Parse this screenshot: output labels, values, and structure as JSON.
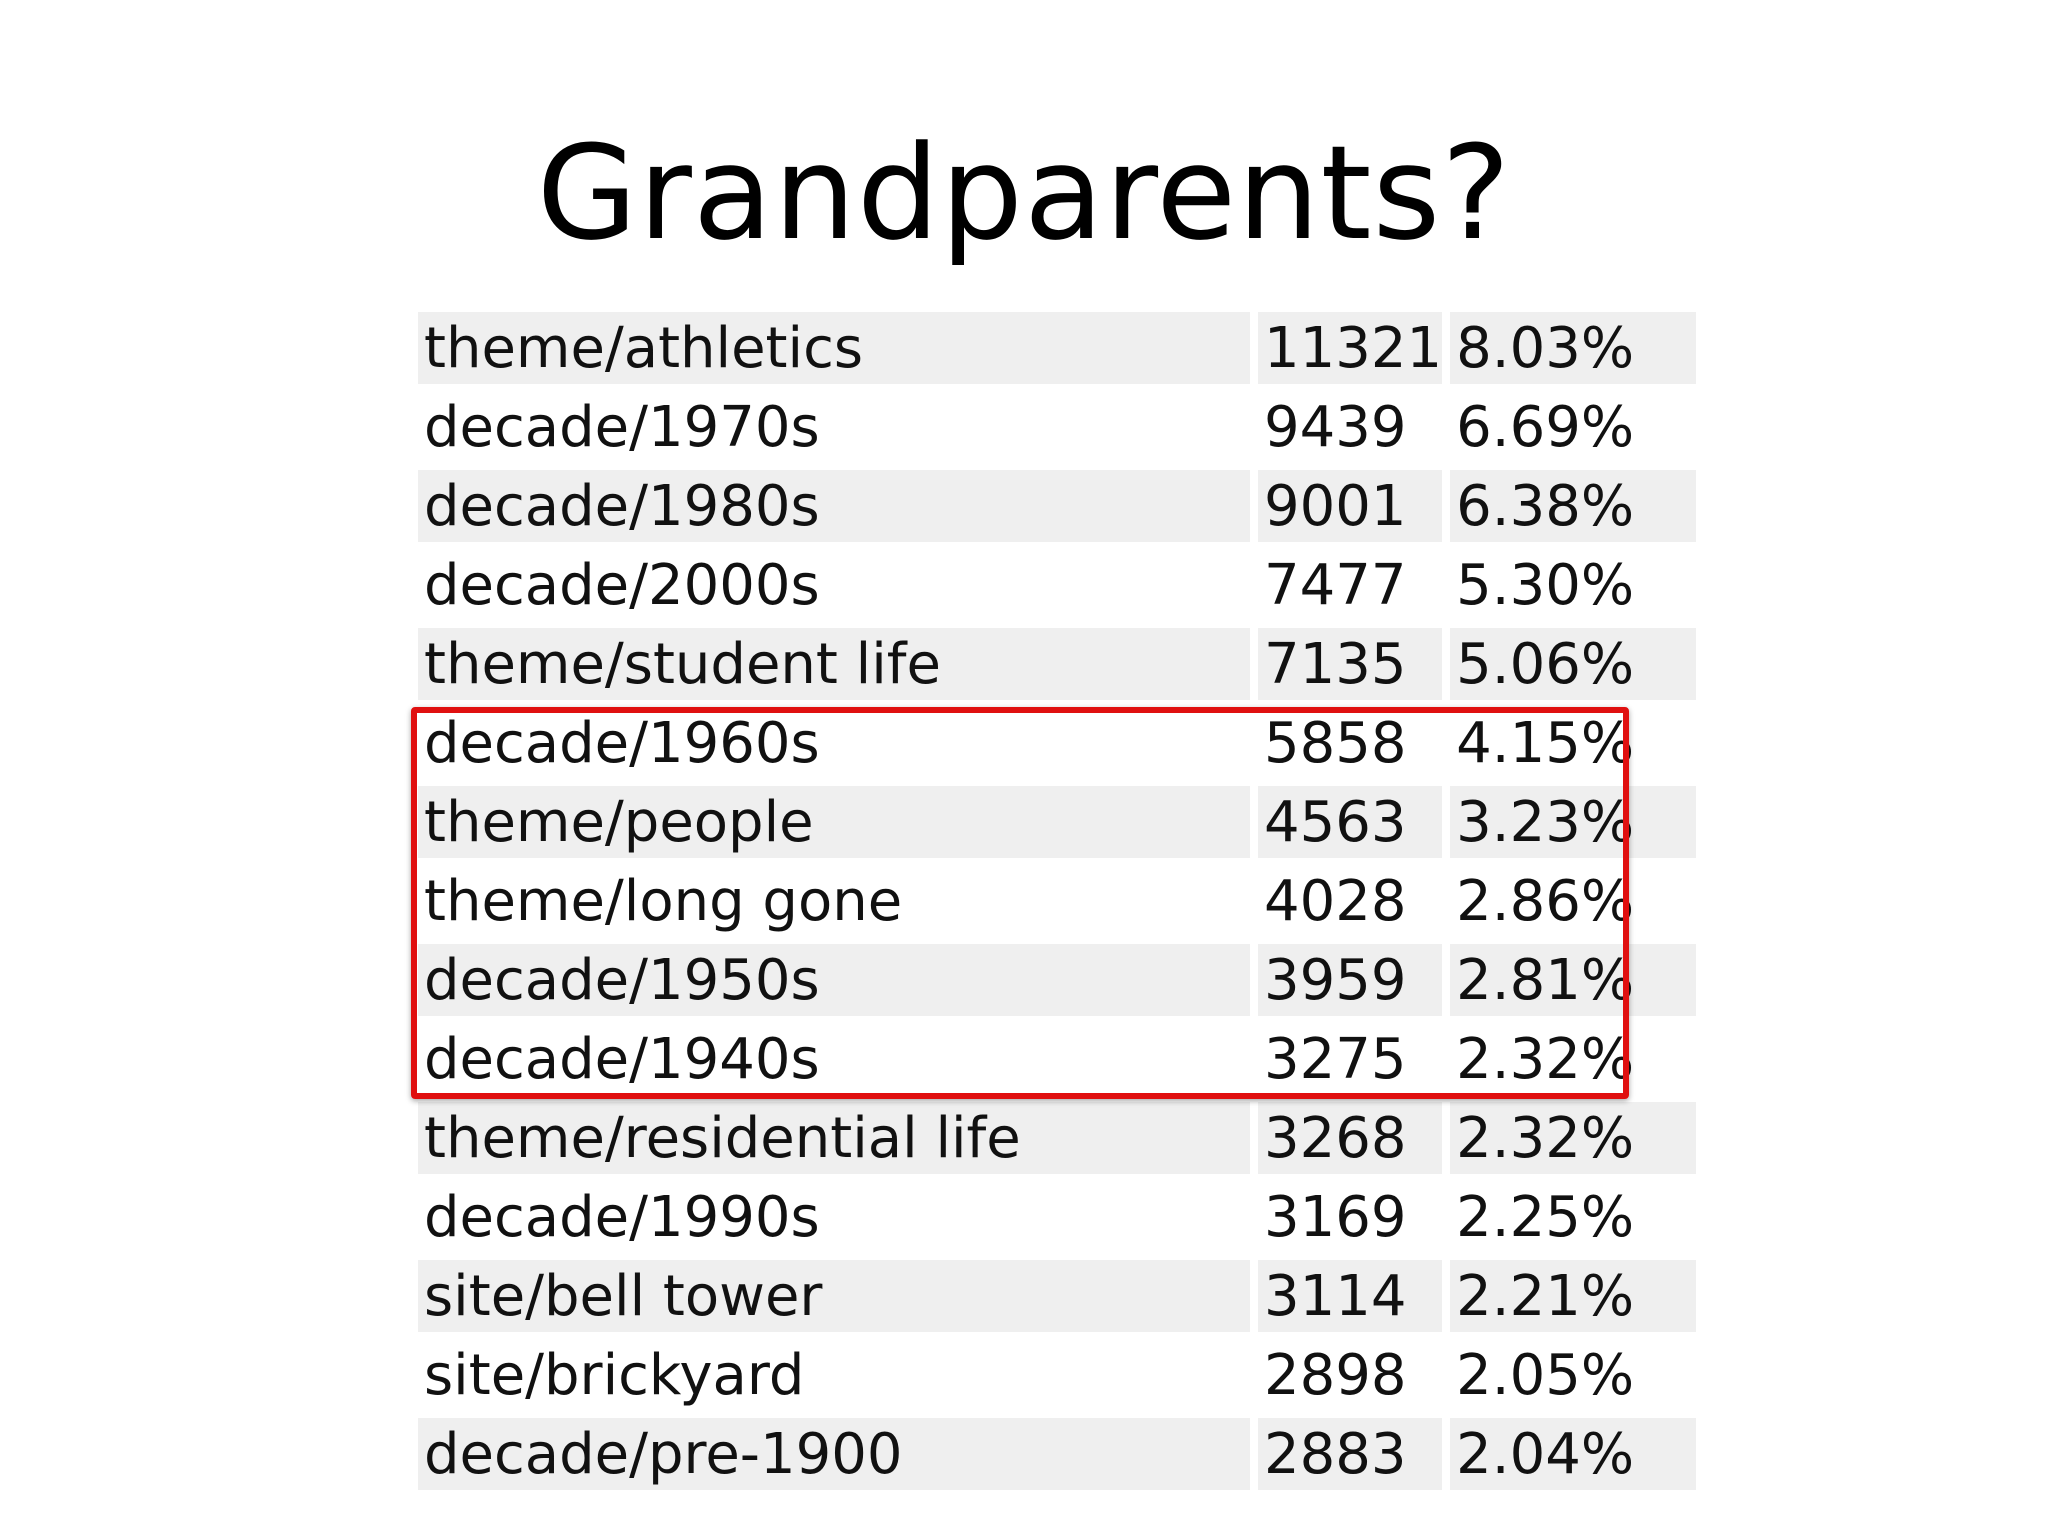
{
  "slide": {
    "title": "Grandparents?"
  },
  "table": {
    "rows": [
      {
        "tag": "theme/athletics",
        "count": "11321",
        "percent": "8.03%"
      },
      {
        "tag": "decade/1970s",
        "count": "9439",
        "percent": "6.69%"
      },
      {
        "tag": "decade/1980s",
        "count": "9001",
        "percent": "6.38%"
      },
      {
        "tag": "decade/2000s",
        "count": "7477",
        "percent": "5.30%"
      },
      {
        "tag": "theme/student life",
        "count": "7135",
        "percent": "5.06%"
      },
      {
        "tag": "decade/1960s",
        "count": "5858",
        "percent": "4.15%"
      },
      {
        "tag": "theme/people",
        "count": "4563",
        "percent": "3.23%"
      },
      {
        "tag": "theme/long gone",
        "count": "4028",
        "percent": "2.86%"
      },
      {
        "tag": "decade/1950s",
        "count": "3959",
        "percent": "2.81%"
      },
      {
        "tag": "decade/1940s",
        "count": "3275",
        "percent": "2.32%"
      },
      {
        "tag": "theme/residential life",
        "count": "3268",
        "percent": "2.32%"
      },
      {
        "tag": "decade/1990s",
        "count": "3169",
        "percent": "2.25%"
      },
      {
        "tag": "site/bell tower",
        "count": "3114",
        "percent": "2.21%"
      },
      {
        "tag": "site/brickyard",
        "count": "2898",
        "percent": "2.05%"
      },
      {
        "tag": "decade/pre-1900",
        "count": "2883",
        "percent": "2.04%"
      }
    ],
    "highlighted_rows": [
      "decade/1960s",
      "theme/people",
      "theme/long gone",
      "decade/1950s",
      "decade/1940s"
    ]
  },
  "colors": {
    "highlight_border": "#e01010",
    "row_shade": "#efefef",
    "background": "#ffffff"
  }
}
